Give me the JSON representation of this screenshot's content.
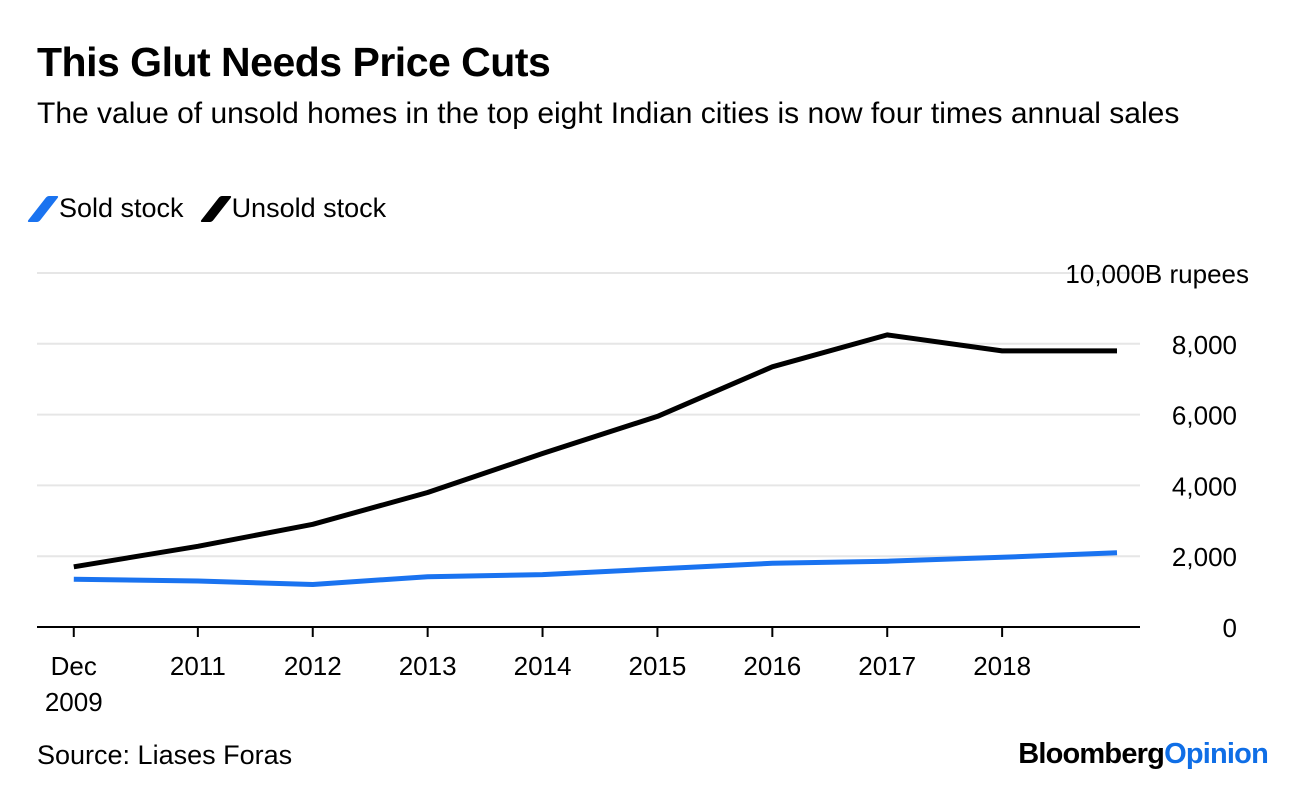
{
  "header": {
    "title": "This Glut Needs Price Cuts",
    "subtitle": "The value of unsold homes in the top eight Indian cities is now four times annual sales"
  },
  "legend": {
    "items": [
      {
        "label": "Sold stock",
        "color": "#1a73f0"
      },
      {
        "label": "Unsold stock",
        "color": "#000000"
      }
    ]
  },
  "footer": {
    "source": "Source: Liases Foras",
    "brand_part1": "Bloomberg",
    "brand_part2": "Opinion"
  },
  "chart_data": {
    "type": "line",
    "unit_label": "10,000B rupees",
    "x": [
      2009.92,
      2011,
      2012,
      2013,
      2014,
      2015,
      2016,
      2017,
      2018,
      2019
    ],
    "x_ticks": [
      {
        "value": 2009.92,
        "label": [
          "Dec",
          "2009"
        ]
      },
      {
        "value": 2011,
        "label": [
          "2011"
        ]
      },
      {
        "value": 2012,
        "label": [
          "2012"
        ]
      },
      {
        "value": 2013,
        "label": [
          "2013"
        ]
      },
      {
        "value": 2014,
        "label": [
          "2014"
        ]
      },
      {
        "value": 2015,
        "label": [
          "2015"
        ]
      },
      {
        "value": 2016,
        "label": [
          "2016"
        ]
      },
      {
        "value": 2017,
        "label": [
          "2017"
        ]
      },
      {
        "value": 2018,
        "label": [
          "2018"
        ]
      }
    ],
    "y_ticks": [
      0,
      2000,
      4000,
      6000,
      8000
    ],
    "y_tick_labels": [
      "0",
      "2,000",
      "4,000",
      "6,000",
      "8,000"
    ],
    "ylim": [
      0,
      10000
    ],
    "xlim": [
      2009.6,
      2019.2
    ],
    "grid": true,
    "legend_position": "top-left",
    "y_axis_side": "right",
    "series": [
      {
        "name": "Sold stock",
        "color": "#1a73f0",
        "values": [
          1350,
          1300,
          1200,
          1420,
          1480,
          1640,
          1800,
          1860,
          1970,
          2100
        ]
      },
      {
        "name": "Unsold stock",
        "color": "#000000",
        "values": [
          1700,
          2280,
          2900,
          3800,
          4900,
          5950,
          7350,
          8250,
          7800,
          7800
        ]
      }
    ]
  }
}
